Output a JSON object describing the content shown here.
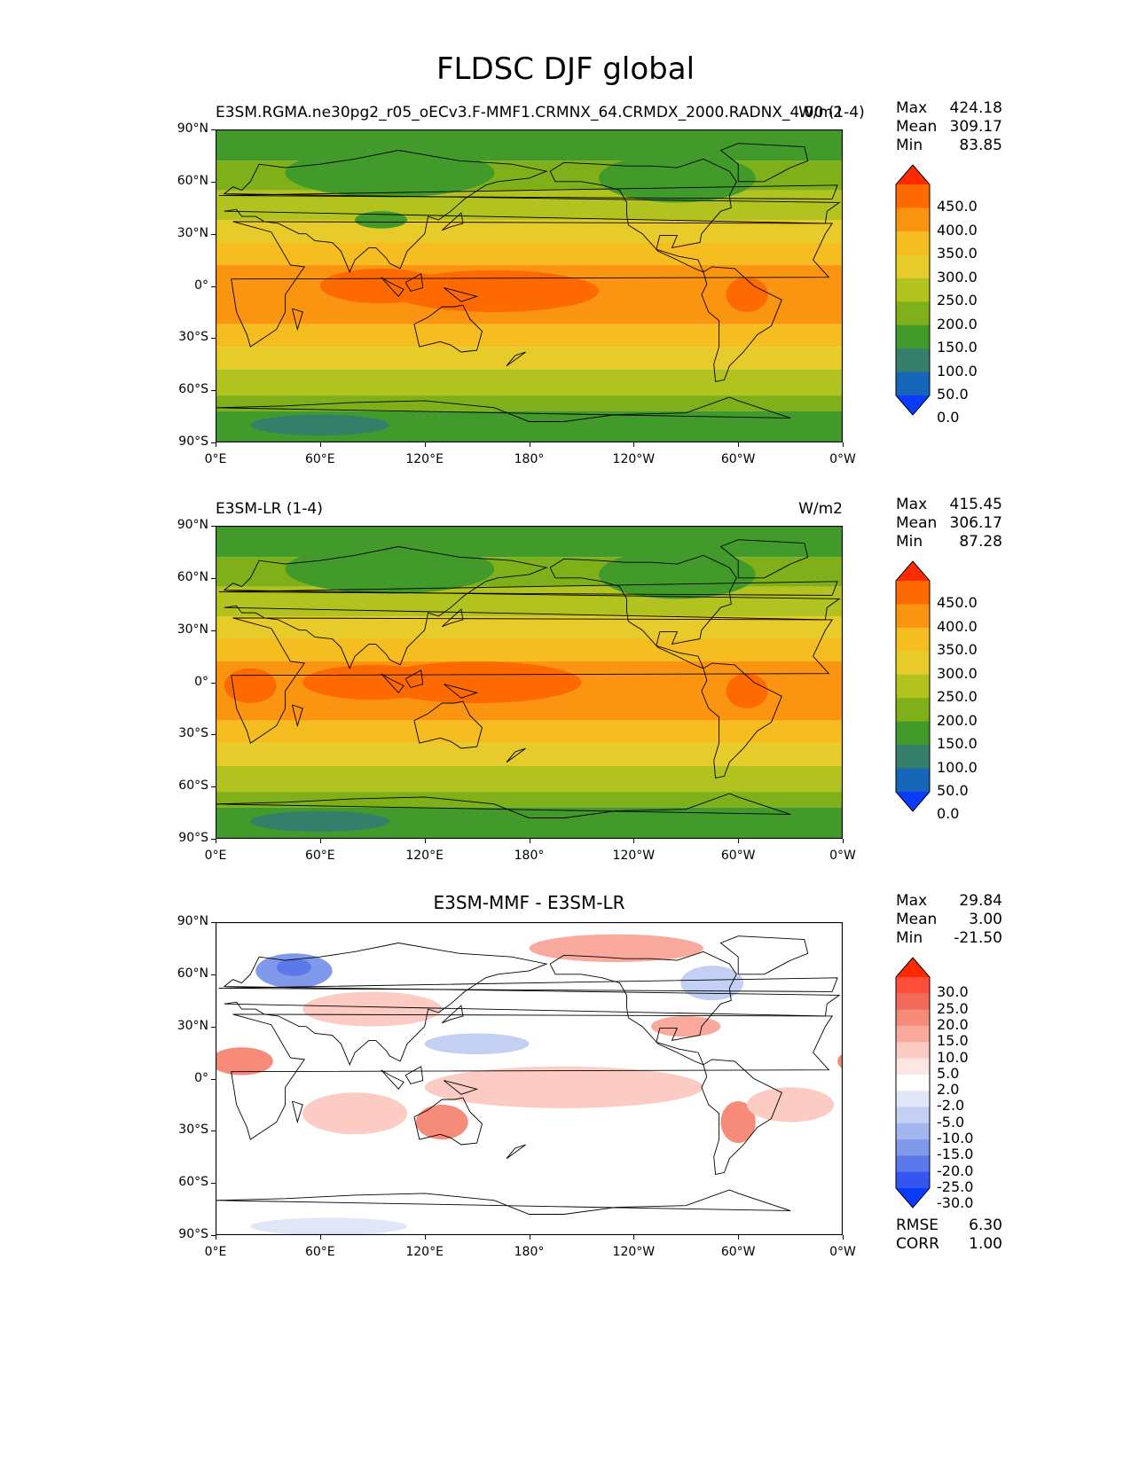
{
  "figure": {
    "title": "FLDSC DJF global"
  },
  "axes": {
    "lat_labels": [
      "90°N",
      "60°N",
      "30°N",
      "0°",
      "30°S",
      "60°S",
      "90°S"
    ],
    "lon_labels": [
      "0°E",
      "60°E",
      "120°E",
      "180°",
      "120°W",
      "60°W",
      "0°W"
    ]
  },
  "panels": [
    {
      "id": "test",
      "left_title": "E3SM.RGMA.ne30pg2_r05_oECv3.F-MMF1.CRMNX_64.CRMDX_2000.RADNX_4.00 (1-4)",
      "center_title": "",
      "units": "W/m2",
      "stats": {
        "max_label": "Max",
        "max": "424.18",
        "mean_label": "Mean",
        "mean": "309.17",
        "min_label": "Min",
        "min": "83.85"
      },
      "colorbar": {
        "ticks": [
          "450.0",
          "400.0",
          "350.0",
          "300.0",
          "250.0",
          "200.0",
          "150.0",
          "100.0",
          "50.0",
          "0.0"
        ],
        "colors": [
          "#ff2a00",
          "#ff6a00",
          "#fb9410",
          "#f5bd1f",
          "#e6cb2a",
          "#b2c21f",
          "#7fb019",
          "#429a2b",
          "#357f6a",
          "#1565b8",
          "#0a3bff"
        ]
      },
      "zones": [
        {
          "lat_from": 90,
          "lat_to": 72,
          "color": "#429a2b"
        },
        {
          "lat_from": 72,
          "lat_to": 55,
          "color": "#7fb019"
        },
        {
          "lat_from": 55,
          "lat_to": 38,
          "color": "#b2c21f"
        },
        {
          "lat_from": 38,
          "lat_to": 25,
          "color": "#e6cb2a"
        },
        {
          "lat_from": 25,
          "lat_to": 12,
          "color": "#f5bd1f"
        },
        {
          "lat_from": 12,
          "lat_to": -22,
          "color": "#fb9410"
        },
        {
          "lat_from": -22,
          "lat_to": -35,
          "color": "#f5bd1f"
        },
        {
          "lat_from": -35,
          "lat_to": -48,
          "color": "#e6cb2a"
        },
        {
          "lat_from": -48,
          "lat_to": -63,
          "color": "#b2c21f"
        },
        {
          "lat_from": -63,
          "lat_to": -72,
          "color": "#7fb019"
        },
        {
          "lat_from": -72,
          "lat_to": -90,
          "color": "#429a2b"
        }
      ],
      "blobs": [
        {
          "lon": 60,
          "lat": -80,
          "rx": 40,
          "ry": 6,
          "color": "#357f6a"
        },
        {
          "lon": 100,
          "lat": 65,
          "rx": 60,
          "ry": 14,
          "color": "#429a2b"
        },
        {
          "lon": 265,
          "lat": 62,
          "rx": 45,
          "ry": 14,
          "color": "#429a2b"
        },
        {
          "lon": 160,
          "lat": -3,
          "rx": 60,
          "ry": 12,
          "color": "#ff6a00"
        },
        {
          "lon": 95,
          "lat": 0,
          "rx": 35,
          "ry": 10,
          "color": "#ff6a00"
        },
        {
          "lon": 305,
          "lat": -5,
          "rx": 12,
          "ry": 10,
          "color": "#ff6a00"
        },
        {
          "lon": 95,
          "lat": 38,
          "rx": 15,
          "ry": 5,
          "color": "#429a2b"
        }
      ]
    },
    {
      "id": "reference",
      "left_title": "E3SM-LR (1-4)",
      "center_title": "",
      "units": "W/m2",
      "stats": {
        "max_label": "Max",
        "max": "415.45",
        "mean_label": "Mean",
        "mean": "306.17",
        "min_label": "Min",
        "min": "87.28"
      },
      "colorbar": {
        "ticks": [
          "450.0",
          "400.0",
          "350.0",
          "300.0",
          "250.0",
          "200.0",
          "150.0",
          "100.0",
          "50.0",
          "0.0"
        ],
        "colors": [
          "#ff2a00",
          "#ff6a00",
          "#fb9410",
          "#f5bd1f",
          "#e6cb2a",
          "#b2c21f",
          "#7fb019",
          "#429a2b",
          "#357f6a",
          "#1565b8",
          "#0a3bff"
        ]
      },
      "zones": [
        {
          "lat_from": 90,
          "lat_to": 72,
          "color": "#429a2b"
        },
        {
          "lat_from": 72,
          "lat_to": 55,
          "color": "#7fb019"
        },
        {
          "lat_from": 55,
          "lat_to": 38,
          "color": "#b2c21f"
        },
        {
          "lat_from": 38,
          "lat_to": 25,
          "color": "#e6cb2a"
        },
        {
          "lat_from": 25,
          "lat_to": 12,
          "color": "#f5bd1f"
        },
        {
          "lat_from": 12,
          "lat_to": -22,
          "color": "#fb9410"
        },
        {
          "lat_from": -22,
          "lat_to": -35,
          "color": "#f5bd1f"
        },
        {
          "lat_from": -35,
          "lat_to": -48,
          "color": "#e6cb2a"
        },
        {
          "lat_from": -48,
          "lat_to": -63,
          "color": "#b2c21f"
        },
        {
          "lat_from": -63,
          "lat_to": -72,
          "color": "#7fb019"
        },
        {
          "lat_from": -72,
          "lat_to": -90,
          "color": "#429a2b"
        }
      ],
      "blobs": [
        {
          "lon": 60,
          "lat": -80,
          "rx": 40,
          "ry": 6,
          "color": "#357f6a"
        },
        {
          "lon": 100,
          "lat": 65,
          "rx": 60,
          "ry": 14,
          "color": "#429a2b"
        },
        {
          "lon": 265,
          "lat": 62,
          "rx": 45,
          "ry": 14,
          "color": "#429a2b"
        },
        {
          "lon": 150,
          "lat": 0,
          "rx": 60,
          "ry": 12,
          "color": "#ff6a00"
        },
        {
          "lon": 90,
          "lat": 0,
          "rx": 40,
          "ry": 10,
          "color": "#ff6a00"
        },
        {
          "lon": 305,
          "lat": -5,
          "rx": 12,
          "ry": 10,
          "color": "#ff6a00"
        },
        {
          "lon": 20,
          "lat": -2,
          "rx": 15,
          "ry": 10,
          "color": "#ff6a00"
        }
      ]
    },
    {
      "id": "difference",
      "left_title": "",
      "center_title": "E3SM-MMF - E3SM-LR",
      "units": "",
      "stats": {
        "max_label": "Max",
        "max": "29.84",
        "mean_label": "Mean",
        "mean": "3.00",
        "min_label": "Min",
        "min": "-21.50"
      },
      "colorbar": {
        "ticks": [
          "30.0",
          "25.0",
          "20.0",
          "15.0",
          "10.0",
          "5.0",
          "2.0",
          "-2.0",
          "-5.0",
          "-10.0",
          "-15.0",
          "-20.0",
          "-25.0",
          "-30.0"
        ],
        "colors": [
          "#ff2a00",
          "#ff4f3a",
          "#f26b5a",
          "#f68b7a",
          "#f9aa9d",
          "#fccbc3",
          "#fde6e2",
          "#ffffff",
          "#e1e7f8",
          "#c3d0f4",
          "#a4b6ef",
          "#8199eb",
          "#5b79ea",
          "#3455f0",
          "#0a3bff"
        ]
      },
      "metrics": {
        "rmse_label": "RMSE",
        "rmse": "6.30",
        "corr_label": "CORR",
        "corr": "1.00"
      },
      "zones": [
        {
          "lat_from": 90,
          "lat_to": -90,
          "color": "#ffffff"
        }
      ],
      "blobs": [
        {
          "lon": 45,
          "lat": 62,
          "rx": 22,
          "ry": 10,
          "color": "#8199eb"
        },
        {
          "lon": 45,
          "lat": 64,
          "rx": 10,
          "ry": 5,
          "color": "#5b79ea"
        },
        {
          "lon": 285,
          "lat": 55,
          "rx": 18,
          "ry": 10,
          "color": "#c3d0f4"
        },
        {
          "lon": 150,
          "lat": 20,
          "rx": 30,
          "ry": 6,
          "color": "#c3d0f4"
        },
        {
          "lon": 65,
          "lat": -85,
          "rx": 45,
          "ry": 5,
          "color": "#e1e7f8"
        },
        {
          "lon": 230,
          "lat": 75,
          "rx": 50,
          "ry": 8,
          "color": "#f9aa9d"
        },
        {
          "lon": 90,
          "lat": 40,
          "rx": 40,
          "ry": 10,
          "color": "#fccbc3"
        },
        {
          "lon": 15,
          "lat": 10,
          "rx": 18,
          "ry": 8,
          "color": "#f68b7a"
        },
        {
          "lon": 130,
          "lat": -25,
          "rx": 15,
          "ry": 10,
          "color": "#f68b7a"
        },
        {
          "lon": 300,
          "lat": -25,
          "rx": 10,
          "ry": 12,
          "color": "#f68b7a"
        },
        {
          "lon": 200,
          "lat": -5,
          "rx": 80,
          "ry": 12,
          "color": "#fccbc3"
        },
        {
          "lon": 80,
          "lat": -20,
          "rx": 30,
          "ry": 12,
          "color": "#fccbc3"
        },
        {
          "lon": 330,
          "lat": -15,
          "rx": 25,
          "ry": 10,
          "color": "#fccbc3"
        },
        {
          "lon": 270,
          "lat": 30,
          "rx": 20,
          "ry": 6,
          "color": "#f9aa9d"
        }
      ]
    }
  ]
}
